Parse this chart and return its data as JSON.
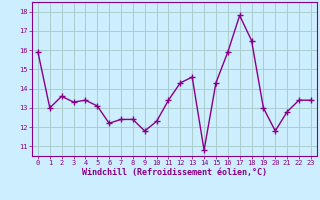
{
  "x": [
    0,
    1,
    2,
    3,
    4,
    5,
    6,
    7,
    8,
    9,
    10,
    11,
    12,
    13,
    14,
    15,
    16,
    17,
    18,
    19,
    20,
    21,
    22,
    23
  ],
  "y": [
    15.9,
    13.0,
    13.6,
    13.3,
    13.4,
    13.1,
    12.2,
    12.4,
    12.4,
    11.8,
    12.3,
    13.4,
    14.3,
    14.6,
    10.8,
    14.3,
    15.9,
    17.8,
    16.5,
    13.0,
    11.8,
    12.8,
    13.4,
    13.4
  ],
  "line_color": "#880088",
  "marker": "+",
  "marker_size": 4,
  "marker_linewidth": 1.0,
  "bg_color": "#cceeff",
  "grid_color": "#aacccc",
  "xlabel": "Windchill (Refroidissement éolien,°C)",
  "xlabel_color": "#880088",
  "ylabel_ticks": [
    11,
    12,
    13,
    14,
    15,
    16,
    17,
    18
  ],
  "xlim": [
    -0.5,
    23.5
  ],
  "ylim": [
    10.5,
    18.5
  ],
  "tick_color": "#880088",
  "xticks": [
    0,
    1,
    2,
    3,
    4,
    5,
    6,
    7,
    8,
    9,
    10,
    11,
    12,
    13,
    14,
    15,
    16,
    17,
    18,
    19,
    20,
    21,
    22,
    23
  ],
  "tick_fontsize": 5.0,
  "xlabel_fontsize": 6.0,
  "linewidth": 1.0
}
